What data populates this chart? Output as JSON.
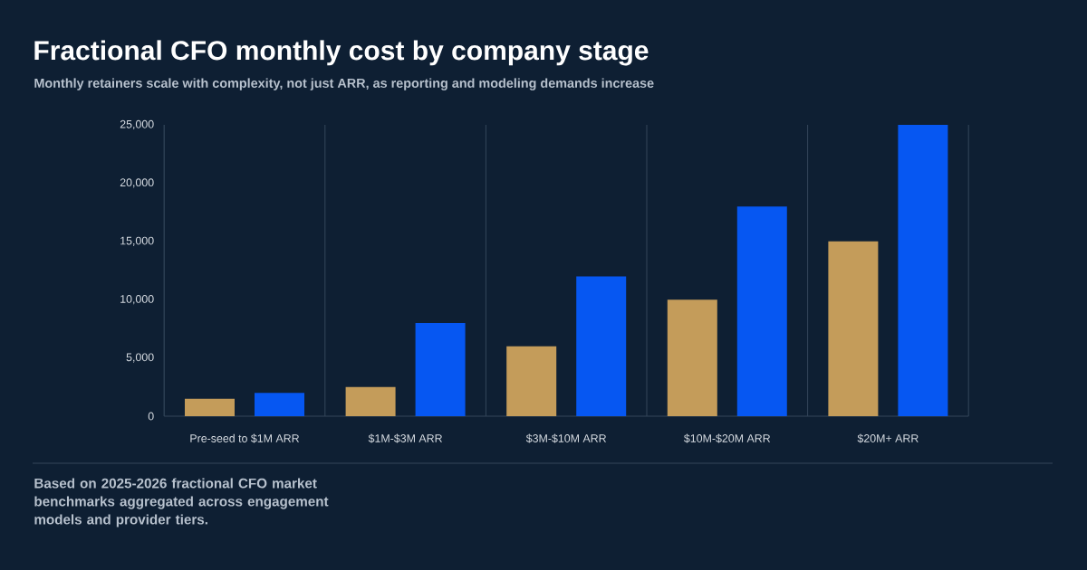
{
  "chart_data": {
    "type": "bar",
    "title": "Fractional CFO monthly cost by company stage",
    "subtitle": "Monthly retainers scale with complexity, not just ARR, as reporting and modeling demands increase",
    "categories": [
      "Pre-seed to $1M ARR",
      "$1M-$3M ARR",
      "$3M-$10M ARR",
      "$10M-$20M ARR",
      "$20M+ ARR"
    ],
    "series": [
      {
        "color": "#c49c5a",
        "values": [
          1500,
          2500,
          6000,
          10000,
          15000
        ]
      },
      {
        "color": "#0657f2",
        "values": [
          2000,
          8000,
          12000,
          18000,
          25000
        ]
      }
    ],
    "ylim": [
      0,
      25000
    ],
    "yticks": [
      0,
      {
        "value": 5000,
        "label": "5,000"
      },
      {
        "value": 10000,
        "label": "10,000"
      },
      {
        "value": 15000,
        "label": "15,000"
      },
      {
        "value": 20000,
        "label": "20,000"
      },
      {
        "value": 25000,
        "label": "25,000"
      }
    ],
    "grid": "x",
    "annotations": [
      "Based on 2025-2026 fractional CFO market benchmarks aggregated across engagement models and provider tiers."
    ]
  }
}
